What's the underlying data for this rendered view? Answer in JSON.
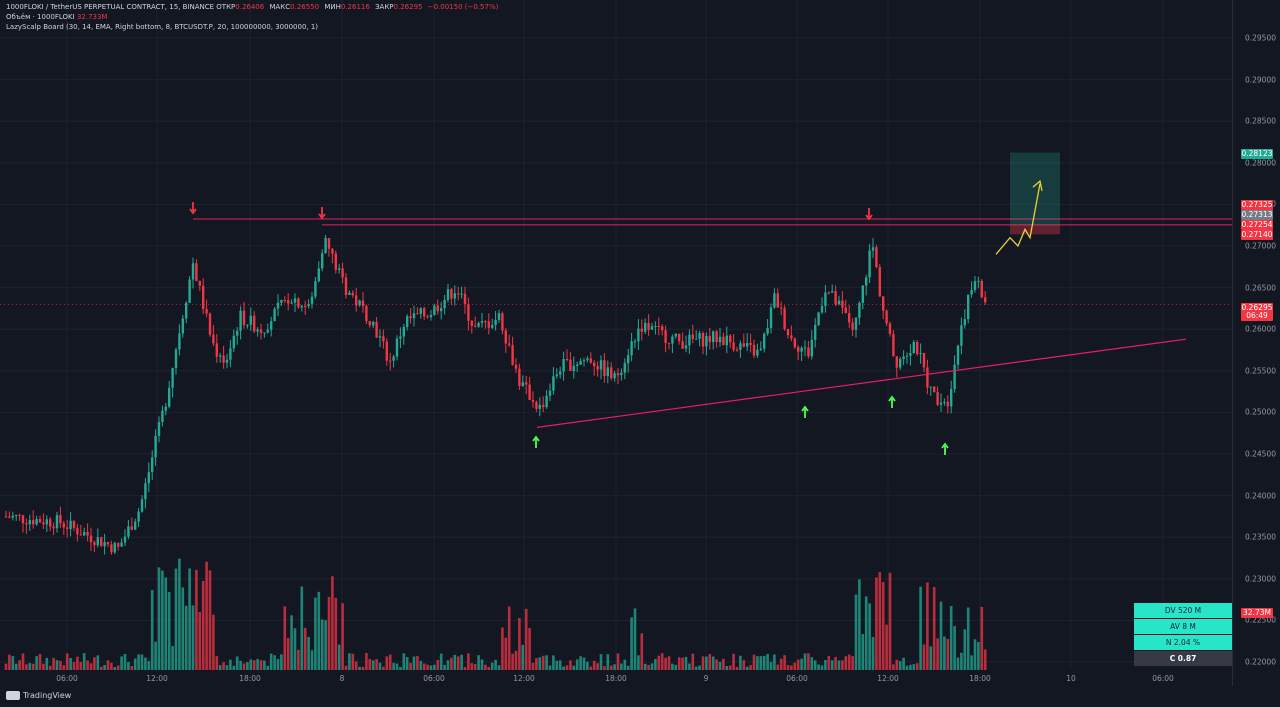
{
  "legend": {
    "line1": {
      "symbol": "1000FLOKI / TetherUS PERPETUAL CONTRACT, 15, BINANCE",
      "open_label": "ОТКР",
      "open": "0.26406",
      "high_label": "МАКС",
      "high": "0.26550",
      "low_label": "МИН",
      "low": "0.26116",
      "close_label": "ЗАКР",
      "close": "0.26295",
      "change": "−0.00150 (−0.57%)"
    },
    "line2": {
      "label": "Объём · 1000FLOKI",
      "value": "32.733M"
    },
    "line3": {
      "label": "LazyScalp Board (30, 14, EMA, Right bottom, 8, BTCUSDT.P, 20, 100000000, 3000000, 1)"
    }
  },
  "price_ticks": [
    "0.29500",
    "0.29000",
    "0.28500",
    "0.28000",
    "0.27500",
    "0.27000",
    "0.26500",
    "0.26000",
    "0.25500",
    "0.25000",
    "0.24500",
    "0.24000",
    "0.23500",
    "0.23000",
    "0.22500",
    "0.22000"
  ],
  "time_ticks": [
    "06:00",
    "12:00",
    "18:00",
    "8",
    "06:00",
    "12:00",
    "18:00",
    "9",
    "06:00",
    "12:00",
    "18:00",
    "10",
    "06:00"
  ],
  "price_labels": [
    {
      "text": "0.28123",
      "color": "#22ab94"
    },
    {
      "text": "0.27325",
      "color": "#f23645"
    },
    {
      "text": "0.27313",
      "color": "#787b86"
    },
    {
      "text": "0.27254",
      "color": "#f23645"
    },
    {
      "text": "0.27140",
      "color": "#f23645"
    },
    {
      "text": "0.26295",
      "color": "#f23645"
    },
    {
      "text": "06:49",
      "color": "#f23645"
    },
    {
      "text": "32.73M",
      "color": "#f23645"
    }
  ],
  "scalp_board": [
    {
      "text": "DV 520 M",
      "color": "#26e5c8"
    },
    {
      "text": "AV 8 M",
      "color": "#26e5c8"
    },
    {
      "text": "N 2.04 %",
      "color": "#26e5c8"
    },
    {
      "text": "C  0.87",
      "color": "#363a45"
    }
  ],
  "footer": {
    "brand": "TradingView"
  },
  "colors": {
    "up": "#22ab94",
    "down": "#f23645",
    "bg": "#131722",
    "trend": "#e91e63",
    "projection": "#e6d236"
  },
  "chart_data": {
    "type": "candlestick",
    "y_range": [
      0.2185,
      0.2985
    ],
    "resistance_levels": [
      0.27325,
      0.27254
    ],
    "markers_down": [
      "resistance touch 1",
      "resistance touch 2",
      "resistance touch 3"
    ],
    "markers_up": [
      "support touch 1",
      "support touch 2",
      "support touch 3",
      "support touch 4"
    ],
    "last_price": 0.26295,
    "target_price": 0.28123
  }
}
